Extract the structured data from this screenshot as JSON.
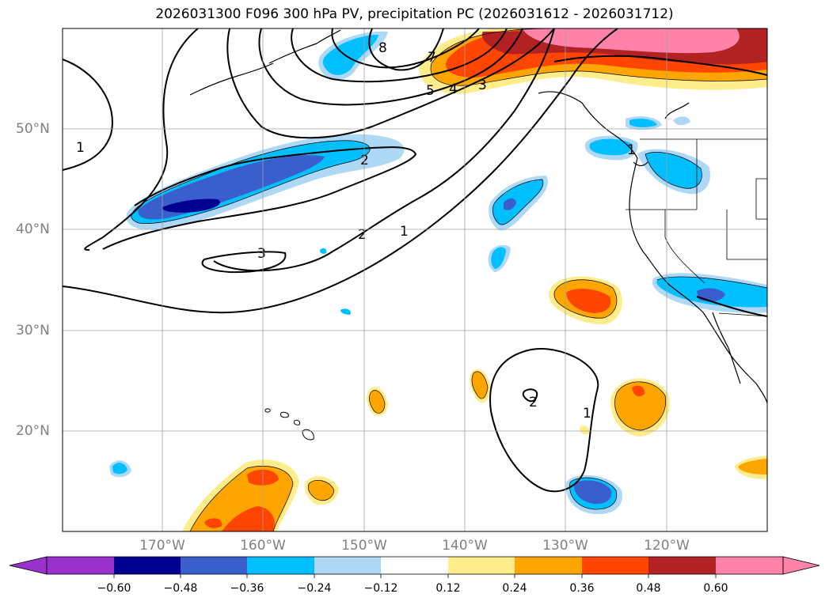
{
  "title": "2026031300 F096 300 hPa PV, precipitation PC (2026031612 - 2026031712)",
  "lat_labels": [
    "50°N",
    "40°N",
    "30°N",
    "20°N"
  ],
  "lon_labels": [
    "170°W",
    "160°W",
    "150°W",
    "140°W",
    "130°W",
    "120°W"
  ],
  "contour_labels": [
    "8",
    "7",
    "5",
    "4",
    "3",
    "2",
    "1",
    "1",
    "2",
    "1",
    "3",
    "2",
    "1"
  ],
  "colorbar": {
    "ticks": [
      "−0.60",
      "−0.48",
      "−0.36",
      "−0.24",
      "−0.12",
      "0.12",
      "0.24",
      "0.36",
      "0.48",
      "0.60"
    ],
    "colors": [
      "#9932cc",
      "#000090",
      "#3a5fcd",
      "#00bfff",
      "#add8f6",
      "#ffffff",
      "#ffec8b",
      "#ffa500",
      "#ff4500",
      "#b22222",
      "#ff82ab"
    ]
  }
}
